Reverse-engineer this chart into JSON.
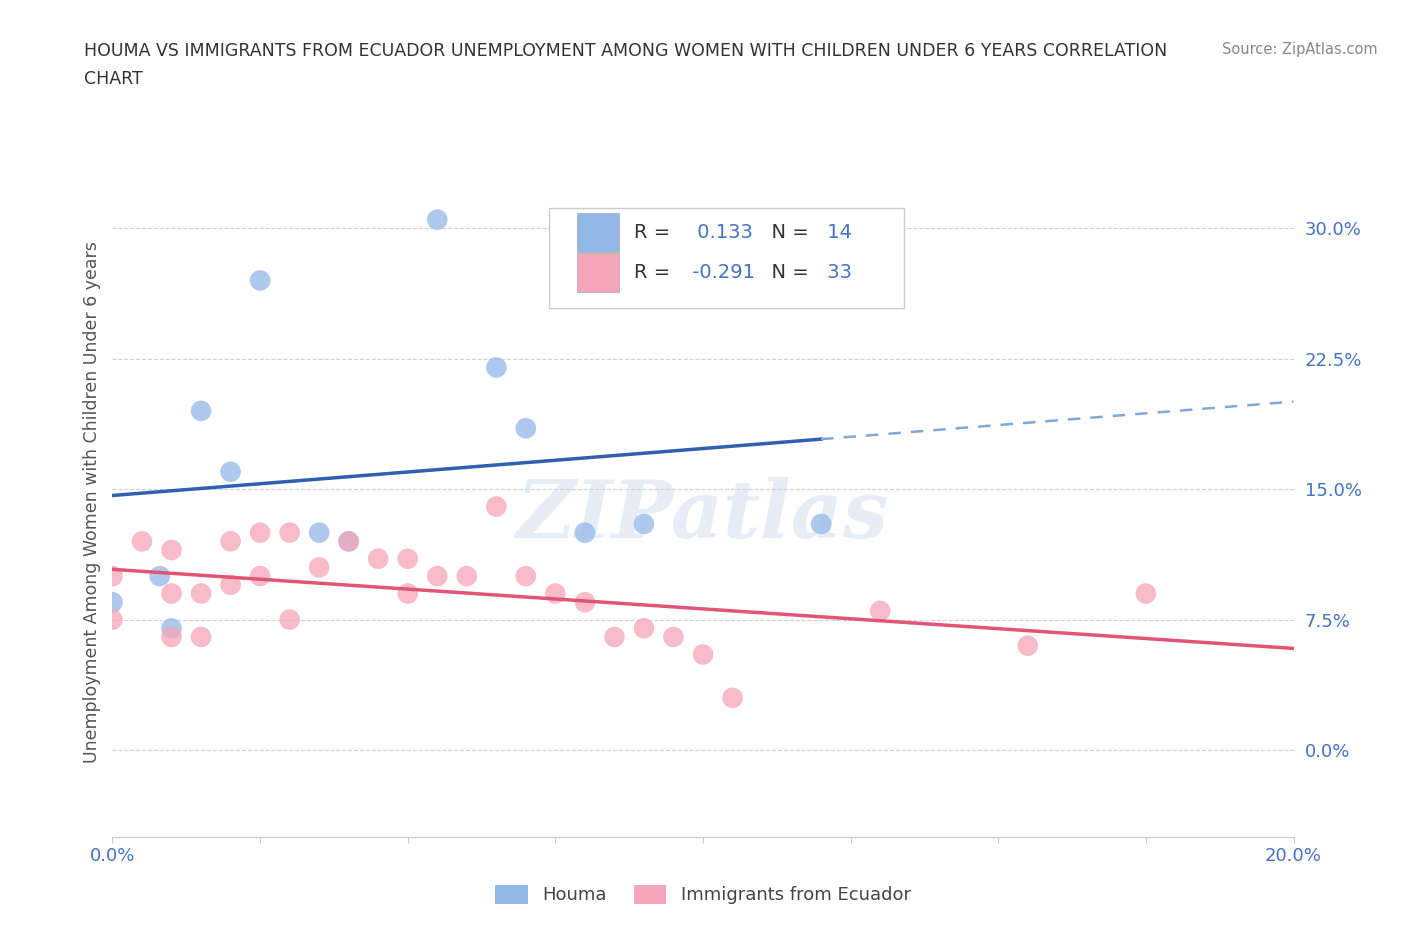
{
  "title_line1": "HOUMA VS IMMIGRANTS FROM ECUADOR UNEMPLOYMENT AMONG WOMEN WITH CHILDREN UNDER 6 YEARS CORRELATION",
  "title_line2": "CHART",
  "source": "Source: ZipAtlas.com",
  "ylabel": "Unemployment Among Women with Children Under 6 years",
  "xlim": [
    0.0,
    0.2
  ],
  "ylim": [
    -0.05,
    0.335
  ],
  "yticks": [
    0.0,
    0.075,
    0.15,
    0.225,
    0.3
  ],
  "ytick_labels": [
    "0.0%",
    "7.5%",
    "15.0%",
    "22.5%",
    "30.0%"
  ],
  "xticks": [
    0.0,
    0.025,
    0.05,
    0.075,
    0.1,
    0.125,
    0.15,
    0.175,
    0.2
  ],
  "xtick_labels": [
    "0.0%",
    "",
    "",
    "",
    "",
    "",
    "",
    "",
    "20.0%"
  ],
  "houma_R": 0.133,
  "houma_N": 14,
  "ecuador_R": -0.291,
  "ecuador_N": 33,
  "houma_color": "#93b8e8",
  "ecuador_color": "#f5a5b8",
  "houma_line_color": "#3060b0",
  "ecuador_line_color": "#e05575",
  "houma_dashed_color": "#80a8d8",
  "watermark_text": "ZIPatlas",
  "houma_x": [
    0.0,
    0.008,
    0.01,
    0.015,
    0.02,
    0.025,
    0.035,
    0.04,
    0.055,
    0.065,
    0.07,
    0.08,
    0.09,
    0.12
  ],
  "houma_y": [
    0.085,
    0.1,
    0.07,
    0.195,
    0.16,
    0.27,
    0.125,
    0.12,
    0.305,
    0.22,
    0.185,
    0.125,
    0.13,
    0.13
  ],
  "ecuador_x": [
    0.0,
    0.0,
    0.005,
    0.01,
    0.01,
    0.01,
    0.015,
    0.015,
    0.02,
    0.02,
    0.025,
    0.025,
    0.03,
    0.03,
    0.035,
    0.04,
    0.045,
    0.05,
    0.05,
    0.055,
    0.06,
    0.065,
    0.07,
    0.075,
    0.08,
    0.085,
    0.09,
    0.095,
    0.1,
    0.105,
    0.13,
    0.155,
    0.175
  ],
  "ecuador_y": [
    0.1,
    0.075,
    0.12,
    0.115,
    0.09,
    0.065,
    0.09,
    0.065,
    0.12,
    0.095,
    0.125,
    0.1,
    0.125,
    0.075,
    0.105,
    0.12,
    0.11,
    0.11,
    0.09,
    0.1,
    0.1,
    0.14,
    0.1,
    0.09,
    0.085,
    0.065,
    0.07,
    0.065,
    0.055,
    0.03,
    0.08,
    0.06,
    0.09
  ],
  "background_color": "#ffffff",
  "grid_color": "#d0d0d0",
  "title_color": "#333333",
  "source_color": "#888888",
  "tick_color": "#4472c4",
  "label_color": "#555555"
}
